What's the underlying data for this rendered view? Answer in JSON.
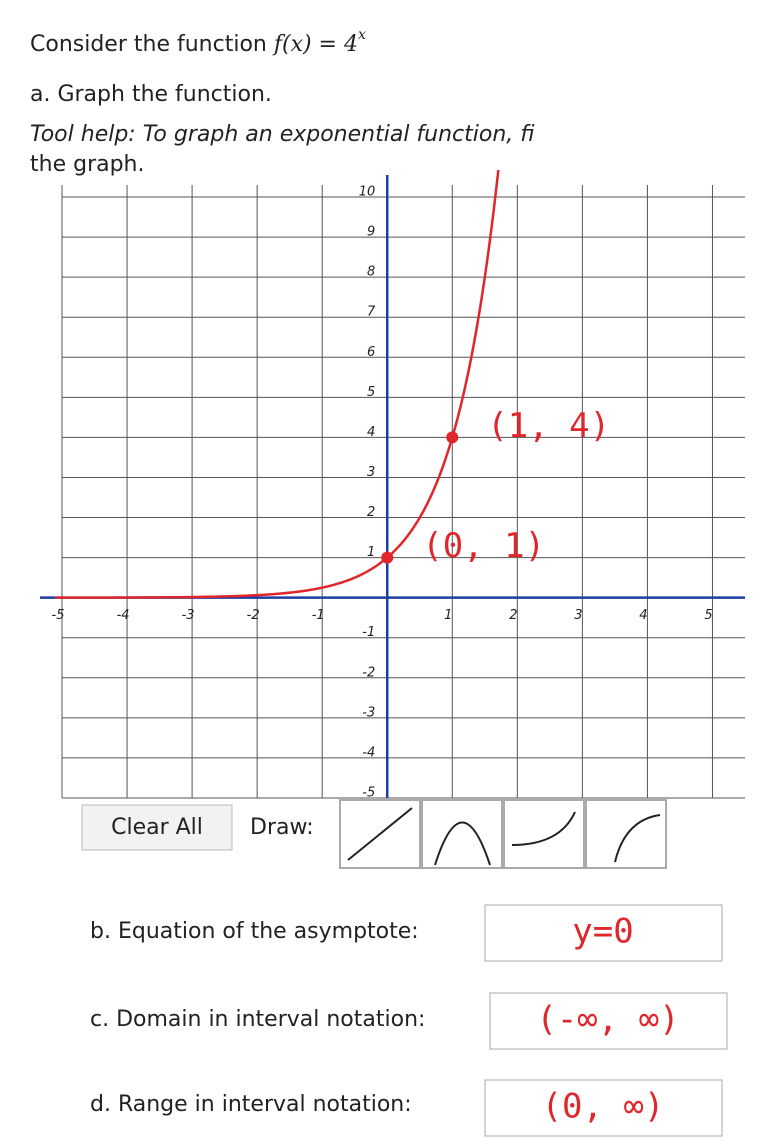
{
  "question": {
    "prefix": "Consider the function ",
    "formula": "f(x) = 4",
    "exponent": "x",
    "part_a": "a. Graph the function.",
    "tool_help": "Tool help: To graph an exponential function, fi",
    "tool_help_2": "the graph."
  },
  "graph": {
    "xlim": [
      -5,
      5.5
    ],
    "ylim": [
      -5,
      10.3
    ],
    "xticks": [
      -5,
      -4,
      -3,
      -2,
      -1,
      1,
      2,
      3,
      4,
      5
    ],
    "yticks": [
      10,
      9,
      8,
      7,
      6,
      5,
      4,
      3,
      2,
      1,
      -1,
      -2,
      -3,
      -4,
      -5
    ],
    "points": [
      {
        "x": 0,
        "y": 1,
        "label": "(0, 1)"
      },
      {
        "x": 1,
        "y": 4,
        "label": "(1, 4)"
      }
    ],
    "color": "#e0262b"
  },
  "toolbar": {
    "clear": "Clear All",
    "draw": "Draw:"
  },
  "answers": [
    {
      "prompt": "b. Equation of the asymptote:",
      "answer": "y=0"
    },
    {
      "prompt": "c. Domain in interval notation:",
      "answer": "(-∞, ∞)"
    },
    {
      "prompt": "d. Range in interval notation:",
      "answer": "(0, ∞)"
    }
  ]
}
